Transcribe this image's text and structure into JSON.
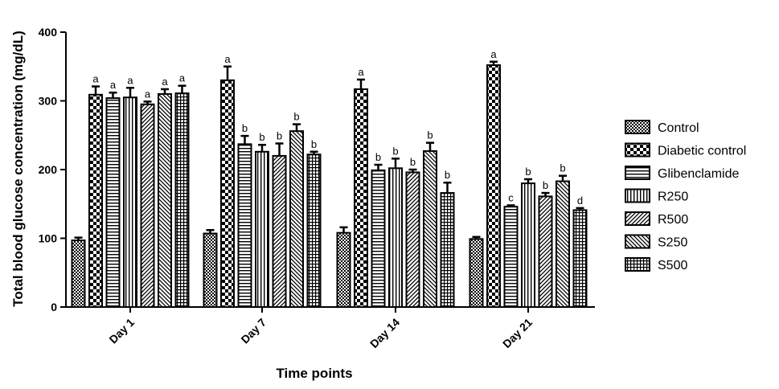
{
  "chart_data": {
    "type": "bar",
    "title": "",
    "xlabel": "Time points",
    "ylabel": "Total blood glucose concentration (mg/dL)",
    "ylim": [
      0,
      400
    ],
    "yticks": [
      0,
      100,
      200,
      300,
      400
    ],
    "categories": [
      "Day 1",
      "Day 7",
      "Day 14",
      "Day 21"
    ],
    "legend_position": "right",
    "grid": false,
    "series": [
      {
        "name": "Control",
        "values": [
          97,
          107,
          108,
          99
        ],
        "errors": [
          4,
          5,
          8,
          3
        ],
        "labels": [
          "",
          "",
          "",
          ""
        ],
        "pattern": "checker"
      },
      {
        "name": "Diabetic control",
        "values": [
          309,
          330,
          317,
          352
        ],
        "errors": [
          12,
          20,
          14,
          5
        ],
        "labels": [
          "a",
          "a",
          "a",
          "a"
        ],
        "pattern": "bigchecker"
      },
      {
        "name": "Glibenclamide",
        "values": [
          304,
          237,
          199,
          146
        ],
        "errors": [
          8,
          12,
          8,
          2
        ],
        "labels": [
          "a",
          "b",
          "b",
          "c"
        ],
        "pattern": "hlines"
      },
      {
        "name": "R250",
        "values": [
          305,
          226,
          202,
          180
        ],
        "errors": [
          14,
          10,
          14,
          6
        ],
        "labels": [
          "a",
          "b",
          "b",
          "b"
        ],
        "pattern": "vlines"
      },
      {
        "name": "R500",
        "values": [
          295,
          220,
          196,
          161
        ],
        "errors": [
          4,
          18,
          4,
          5
        ],
        "labels": [
          "a",
          "b",
          "b",
          "b"
        ],
        "pattern": "diagup"
      },
      {
        "name": "S250",
        "values": [
          310,
          256,
          227,
          183
        ],
        "errors": [
          7,
          10,
          12,
          8
        ],
        "labels": [
          "a",
          "b",
          "b",
          "b"
        ],
        "pattern": "diagdown"
      },
      {
        "name": "S500",
        "values": [
          311,
          222,
          166,
          141
        ],
        "errors": [
          11,
          4,
          15,
          3
        ],
        "labels": [
          "a",
          "b",
          "b",
          "d"
        ],
        "pattern": "grid"
      }
    ]
  }
}
